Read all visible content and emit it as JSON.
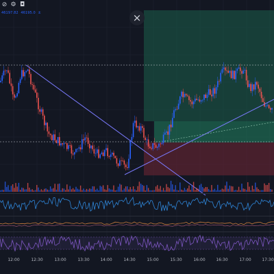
{
  "toolbar": {
    "icons": [
      "eye-off-icon",
      "settings-icon",
      "camera-icon"
    ]
  },
  "legend": {
    "items": [
      "46197.82",
      "46195.0",
      "±"
    ]
  },
  "close_button": {
    "label": "×",
    "icon": "close-icon"
  },
  "time_axis": {
    "ticks": [
      "12:00",
      "12:30",
      "13:00",
      "13:30",
      "14:00",
      "14:30",
      "15:00",
      "15:30",
      "16:00",
      "16:30",
      "17:00",
      "17:30"
    ]
  },
  "colors": {
    "background": "#131722",
    "up": "#2962ff",
    "down": "#ef5350",
    "trendline": "#7b7bff",
    "profit_zone": "#1b5e4a",
    "loss_zone": "#6b2433",
    "rsi": "#7e57c2",
    "osc": "#2f86d9",
    "ma": "#c77b3b"
  }
}
